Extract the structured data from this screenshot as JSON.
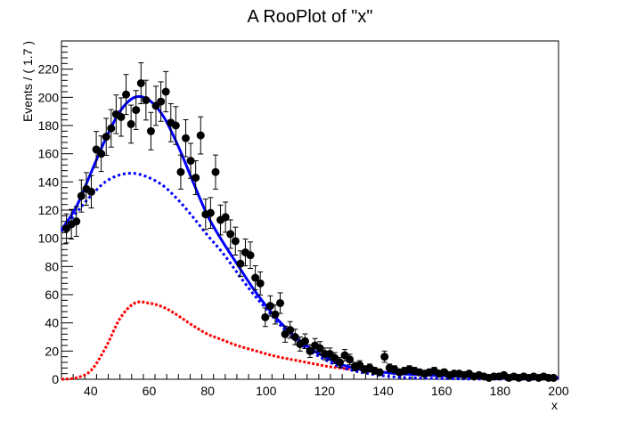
{
  "chart_data": {
    "type": "scatter",
    "title": "A RooPlot of \"x\"",
    "xlabel": "x",
    "ylabel": "Events / ( 1.7 )",
    "xlim": [
      30,
      200
    ],
    "ylim": [
      0,
      240
    ],
    "xticks": [
      40,
      60,
      80,
      100,
      120,
      140,
      160,
      180,
      200
    ],
    "yticks": [
      0,
      20,
      40,
      60,
      80,
      100,
      120,
      140,
      160,
      180,
      200,
      220
    ],
    "grid": false,
    "colors": {
      "data": "#000000",
      "total": "#0000ff",
      "component_blue": "#0000ff",
      "component_red": "#ff0000"
    },
    "data_points": {
      "x": [
        31.7,
        33.4,
        35.1,
        36.8,
        38.5,
        40.2,
        41.9,
        43.6,
        45.3,
        47.0,
        48.7,
        50.4,
        52.1,
        53.8,
        55.5,
        57.2,
        58.9,
        60.6,
        62.3,
        64.0,
        65.7,
        67.4,
        69.1,
        70.8,
        72.5,
        74.2,
        75.9,
        77.6,
        79.3,
        81.0,
        82.7,
        84.4,
        86.1,
        87.8,
        89.5,
        91.2,
        92.9,
        94.6,
        96.3,
        98.0,
        99.7,
        101.4,
        103.1,
        104.8,
        106.5,
        108.2,
        109.9,
        111.6,
        113.3,
        115.0,
        116.7,
        118.4,
        120.1,
        121.8,
        123.5,
        125.2,
        126.9,
        128.6,
        130.3,
        132.0,
        133.7,
        135.4,
        137.1,
        138.8,
        140.5,
        142.2,
        143.9,
        145.6,
        147.3,
        149.0,
        150.7,
        152.4,
        154.1,
        155.8,
        157.5,
        159.2,
        160.9,
        162.6,
        164.3,
        166.0,
        167.7,
        169.4,
        171.1,
        172.8,
        174.5,
        176.2,
        177.9,
        179.6,
        181.3,
        183.0,
        184.7,
        186.4,
        188.1,
        189.8,
        191.5,
        193.2,
        194.9,
        196.6,
        198.3
      ],
      "y": [
        107,
        110,
        112,
        130,
        135,
        133,
        163,
        160,
        172,
        178,
        188,
        186,
        202,
        181,
        191,
        210,
        198,
        176,
        194,
        197,
        204,
        182,
        180,
        147,
        171,
        155,
        143,
        173,
        117,
        118,
        147,
        113,
        115,
        103,
        98,
        82,
        90,
        88,
        72,
        68,
        44,
        52,
        46,
        54,
        32,
        35,
        30,
        25,
        27,
        20,
        24,
        22,
        18,
        18,
        15,
        12,
        17,
        14,
        9,
        10,
        7,
        8,
        6,
        5,
        16,
        8,
        7,
        5,
        6,
        7,
        6,
        5,
        4,
        5,
        6,
        4,
        5,
        3,
        4,
        4,
        3,
        4,
        2,
        3,
        2,
        1,
        2,
        2,
        3,
        1,
        2,
        1,
        2,
        1,
        2,
        1,
        2,
        1,
        1
      ],
      "err": [
        10.3,
        10.5,
        10.6,
        11.4,
        11.6,
        11.5,
        12.8,
        12.6,
        13.1,
        13.3,
        13.7,
        13.6,
        14.2,
        13.5,
        13.8,
        14.5,
        14.1,
        13.3,
        13.9,
        14.0,
        14.3,
        13.5,
        13.4,
        12.1,
        13.1,
        12.4,
        12.0,
        13.2,
        10.8,
        10.9,
        12.1,
        10.6,
        10.7,
        10.1,
        9.9,
        9.1,
        9.5,
        9.4,
        8.5,
        8.2,
        6.6,
        7.2,
        6.8,
        7.3,
        5.7,
        5.9,
        5.5,
        5.0,
        5.2,
        4.5,
        4.9,
        4.7,
        4.2,
        4.2,
        3.9,
        3.5,
        4.1,
        3.7,
        3.0,
        3.2,
        2.6,
        2.8,
        2.4,
        2.2,
        4.0,
        2.8,
        2.6,
        2.2,
        2.4,
        2.6,
        2.4,
        2.2,
        2.0,
        2.2,
        2.4,
        2.0,
        2.2,
        1.7,
        2.0,
        2.0,
        1.7,
        2.0,
        1.4,
        1.7,
        1.4,
        1.0,
        1.4,
        1.4,
        1.7,
        1.0,
        1.4,
        1.0,
        1.4,
        1.0,
        1.4,
        1.0,
        1.4,
        1.0,
        1.0
      ]
    },
    "series": [
      {
        "style": "solid",
        "color": "#0000ff",
        "x": [
          30,
          35,
          40,
          45,
          50,
          55,
          60,
          65,
          70,
          75,
          80,
          85,
          90,
          95,
          100,
          105,
          110,
          115,
          120,
          125,
          130,
          135,
          140,
          145,
          150,
          155,
          160,
          165,
          170,
          175,
          180,
          185,
          190,
          195,
          200
        ],
        "y": [
          106,
          122,
          146,
          170,
          190,
          200,
          198,
          186,
          165,
          140,
          116,
          98,
          82,
          66,
          52,
          40,
          30,
          22,
          16,
          11,
          8,
          6,
          5,
          4,
          3.5,
          3,
          2.5,
          2,
          2,
          1.5,
          1.5,
          1.2,
          1,
          1,
          1
        ]
      },
      {
        "style": "dashed",
        "color": "#0000ff",
        "x": [
          30,
          35,
          40,
          45,
          50,
          55,
          60,
          65,
          70,
          75,
          80,
          85,
          90,
          95,
          100,
          105,
          110,
          115,
          120,
          125,
          130,
          135,
          140,
          145,
          150,
          160,
          170,
          180,
          190,
          200
        ],
        "y": [
          105,
          118,
          130,
          140,
          145,
          146,
          143,
          137,
          127,
          115,
          102,
          90,
          76,
          62,
          50,
          38,
          28,
          20,
          14,
          9,
          6,
          4,
          2.5,
          1.5,
          1,
          0.5,
          0.2,
          0.1,
          0,
          0
        ]
      },
      {
        "style": "dotted",
        "color": "#ff0000",
        "x": [
          30,
          35,
          40,
          45,
          50,
          55,
          60,
          65,
          70,
          75,
          80,
          85,
          90,
          95,
          100,
          105,
          110,
          115,
          120,
          125,
          130,
          135,
          140,
          145,
          150,
          160,
          170,
          180,
          190,
          200
        ],
        "y": [
          0,
          1,
          6,
          22,
          43,
          54,
          54,
          51,
          45,
          38,
          32,
          28,
          24,
          21,
          18,
          15.5,
          13.5,
          11.5,
          9.5,
          8,
          7,
          6,
          5,
          4.2,
          3.5,
          2.5,
          2,
          1.5,
          1.2,
          1
        ]
      }
    ]
  }
}
